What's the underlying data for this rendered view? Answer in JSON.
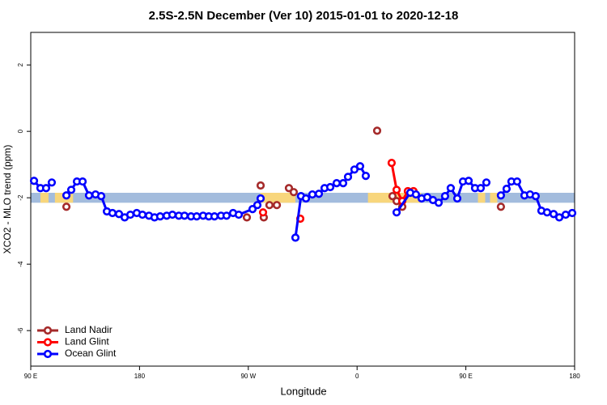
{
  "chart_data": {
    "type": "line",
    "title": "2.5S-2.5N December (Ver 10)   2015-01-01 to 2020-12-18",
    "xlabel": "Longitude",
    "ylabel": "XCO2 - MLO trend (ppm)",
    "xlim": [
      90,
      540
    ],
    "xticks": [
      {
        "value": 90,
        "label": "90 E"
      },
      180,
      {
        "value": 270,
        "label": "90 W"
      },
      {
        "value": 360,
        "label": "0"
      },
      {
        "value": 450,
        "label": "90 E"
      },
      {
        "value": 540,
        "label": "180"
      }
    ],
    "ylim": [
      -7.07,
      2.98
    ],
    "yticks": [
      2,
      0,
      -2,
      -4,
      -6
    ],
    "legend": "bottom-left",
    "reference_band": {
      "ylim": [
        -2.15,
        -1.85
      ],
      "color": "#a3bcdd",
      "land_color": "#f8d67c",
      "land_ranges": [
        [
          98,
          104.7
        ],
        [
          110,
          125
        ],
        [
          280,
          309
        ],
        [
          369,
          413
        ],
        [
          460,
          466
        ],
        [
          470,
          476
        ]
      ]
    },
    "series": [
      {
        "name": "Land Nadir",
        "color": "#a52a2a",
        "line": false,
        "x": [
          119.5,
          268.8,
          280.2,
          282.8,
          287.5,
          293.6,
          303.6,
          307.6,
          376.6,
          389.3,
          392.7,
          397.4,
          479.0
        ],
        "values": [
          -2.27,
          -2.59,
          -1.63,
          -2.59,
          -2.22,
          -2.22,
          -1.71,
          -1.83,
          0.02,
          -1.95,
          -2.1,
          -2.27,
          -2.27
        ]
      },
      {
        "name": "Land Glint",
        "color": "#ff0000",
        "line": true,
        "x": [
          282.2,
          null,
          313.0,
          null,
          388.6,
          392.7,
          397.4,
          402.0,
          406.7
        ],
        "values": [
          -2.44,
          null,
          -2.63,
          null,
          -0.95,
          -1.76,
          -2.1,
          -1.8,
          -1.8
        ]
      },
      {
        "name": "Ocean Glint",
        "color": "#0000ff",
        "line": true,
        "x": [
          92.7,
          98.0,
          102.7,
          107.4,
          null,
          119.5,
          123.5,
          128.2,
          132.9,
          138.2,
          143.6,
          148.3,
          153.0,
          157.6,
          163.0,
          167.7,
          172.4,
          177.7,
          182.4,
          187.8,
          192.4,
          197.1,
          202.5,
          207.2,
          212.5,
          217.2,
          222.6,
          227.3,
          232.6,
          237.3,
          242.0,
          247.4,
          252.0,
          257.4,
          262.1,
          273.5,
          277.5,
          280.2,
          null,
          309.0,
          313.6,
          317.7,
          323.0,
          328.4,
          333.1,
          337.8,
          343.1,
          348.5,
          352.5,
          357.8,
          362.5,
          367.2,
          null,
          392.7,
          404.0,
          408.7,
          413.4,
          418.1,
          422.8,
          427.5,
          432.8,
          437.5,
          442.9,
          447.6,
          452.3,
          457.6,
          462.3,
          467.0,
          null,
          479.0,
          483.7,
          487.7,
          492.4,
          498.5,
          503.1,
          507.8,
          512.5,
          517.2,
          522.6,
          527.3,
          532.6,
          538.0
        ],
        "values": [
          -1.49,
          -1.71,
          -1.71,
          -1.54,
          null,
          -1.93,
          -1.76,
          -1.51,
          -1.51,
          -1.93,
          -1.9,
          -1.95,
          -2.41,
          -2.46,
          -2.49,
          -2.59,
          -2.51,
          -2.46,
          -2.51,
          -2.54,
          -2.59,
          -2.56,
          -2.54,
          -2.51,
          -2.54,
          -2.54,
          -2.56,
          -2.56,
          -2.54,
          -2.56,
          -2.56,
          -2.54,
          -2.54,
          -2.46,
          -2.51,
          -2.34,
          -2.22,
          -2.02,
          null,
          -3.2,
          -1.95,
          -2.02,
          -1.9,
          -1.88,
          -1.71,
          -1.68,
          -1.56,
          -1.56,
          -1.37,
          -1.15,
          -1.05,
          -1.34,
          null,
          -2.44,
          -1.85,
          -1.9,
          -2.02,
          -1.98,
          -2.07,
          -2.15,
          -1.95,
          -1.71,
          -2.02,
          -1.51,
          -1.49,
          -1.71,
          -1.71,
          -1.54,
          null,
          -1.93,
          -1.73,
          -1.51,
          -1.51,
          -1.93,
          -1.9,
          -1.95,
          -2.39,
          -2.44,
          -2.49,
          -2.59,
          -2.51,
          -2.46
        ]
      }
    ]
  }
}
